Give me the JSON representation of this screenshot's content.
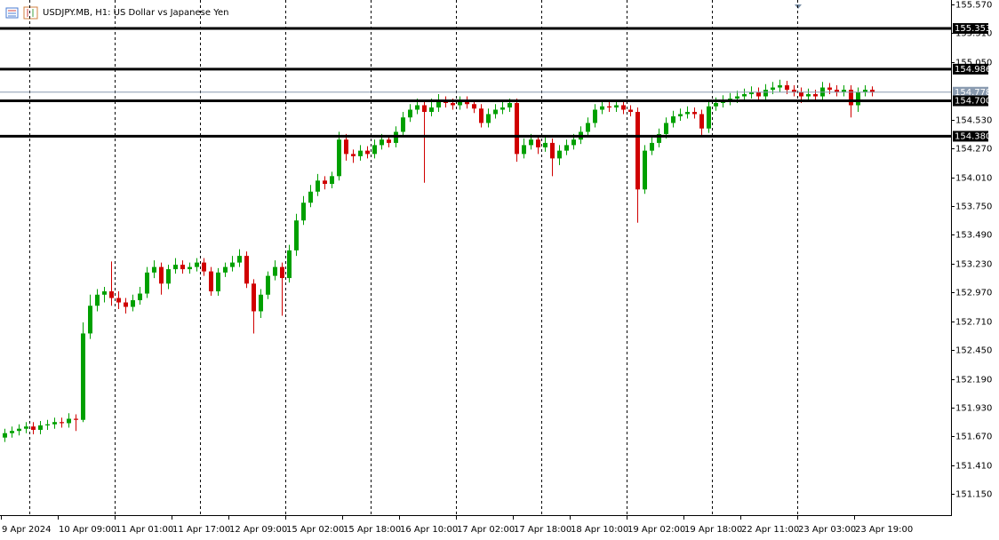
{
  "chart_data": {
    "type": "candlestick",
    "title": "USDJPY.MB, H1:  US Dollar vs Japanese Yen",
    "up_color": "#00a000",
    "down_color": "#d00000",
    "ylim": [
      150.96,
      155.61
    ],
    "yticks": [
      {
        "value": 155.57,
        "label": "155.570"
      },
      {
        "value": 155.31,
        "label": "155.310"
      },
      {
        "value": 155.05,
        "label": "155.050"
      },
      {
        "value": 154.53,
        "label": "154.530"
      },
      {
        "value": 154.27,
        "label": "154.270"
      },
      {
        "value": 154.01,
        "label": "154.010"
      },
      {
        "value": 153.75,
        "label": "153.750"
      },
      {
        "value": 153.49,
        "label": "153.490"
      },
      {
        "value": 153.23,
        "label": "153.230"
      },
      {
        "value": 152.97,
        "label": "152.970"
      },
      {
        "value": 152.71,
        "label": "152.710"
      },
      {
        "value": 152.45,
        "label": "152.450"
      },
      {
        "value": 152.19,
        "label": "152.190"
      },
      {
        "value": 151.93,
        "label": "151.930"
      },
      {
        "value": 151.67,
        "label": "151.670"
      },
      {
        "value": 151.41,
        "label": "151.410"
      },
      {
        "value": 151.15,
        "label": "151.150"
      }
    ],
    "levels": [
      155.353,
      154.986,
      {
        "value": 154.7,
        "label": "154.700"
      },
      {
        "value": 154.38,
        "label": "154.380"
      }
    ],
    "current_price": 154.778,
    "categories": [
      "9 Apr 2024",
      null,
      null,
      null,
      null,
      null,
      null,
      null,
      "10 Apr 09:00",
      null,
      null,
      null,
      null,
      null,
      null,
      null,
      "11 Apr 01:00",
      null,
      null,
      null,
      null,
      null,
      null,
      null,
      "11 Apr 17:00",
      null,
      null,
      null,
      null,
      null,
      null,
      null,
      "12 Apr 09:00",
      null,
      null,
      null,
      null,
      null,
      null,
      null,
      "15 Apr 02:00",
      null,
      null,
      null,
      null,
      null,
      null,
      null,
      "15 Apr 18:00",
      null,
      null,
      null,
      null,
      null,
      null,
      null,
      "16 Apr 10:00",
      null,
      null,
      null,
      null,
      null,
      null,
      null,
      "17 Apr 02:00",
      null,
      null,
      null,
      null,
      null,
      null,
      null,
      "17 Apr 18:00",
      null,
      null,
      null,
      null,
      null,
      null,
      null,
      "18 Apr 10:00",
      null,
      null,
      null,
      null,
      null,
      null,
      null,
      "19 Apr 02:00",
      null,
      null,
      null,
      null,
      null,
      null,
      null,
      "19 Apr 18:00",
      null,
      null,
      null,
      null,
      null,
      null,
      null,
      "22 Apr 11:00",
      null,
      null,
      null,
      null,
      null,
      null,
      null,
      "23 Apr 03:00",
      null,
      null,
      null,
      null,
      null,
      null,
      null,
      "23 Apr 19:00",
      null,
      null
    ],
    "open": [
      151.66,
      151.7,
      151.72,
      151.74,
      151.76,
      151.73,
      151.77,
      151.78,
      151.8,
      151.79,
      151.83,
      151.82,
      152.6,
      152.85,
      152.95,
      152.98,
      152.92,
      152.88,
      152.84,
      152.9,
      152.96,
      153.15,
      153.2,
      153.05,
      153.18,
      153.22,
      153.18,
      153.2,
      153.24,
      153.16,
      152.98,
      153.15,
      153.2,
      153.24,
      153.3,
      153.05,
      152.8,
      152.95,
      153.12,
      153.2,
      153.1,
      153.35,
      153.62,
      153.78,
      153.88,
      153.98,
      153.95,
      154.02,
      154.35,
      154.22,
      154.2,
      154.25,
      154.22,
      154.3,
      154.35,
      154.32,
      154.42,
      154.55,
      154.62,
      154.66,
      154.6,
      154.64,
      154.7,
      154.68,
      154.66,
      154.7,
      154.67,
      154.63,
      154.5,
      154.58,
      154.62,
      154.64,
      154.68,
      154.22,
      154.3,
      154.35,
      154.28,
      154.32,
      154.18,
      154.25,
      154.3,
      154.35,
      154.42,
      154.5,
      154.62,
      154.65,
      154.64,
      154.66,
      154.62,
      154.6,
      153.9,
      154.25,
      154.32,
      154.4,
      154.5,
      154.56,
      154.58,
      154.6,
      154.58,
      154.45,
      154.65,
      154.68,
      154.7,
      154.72,
      154.74,
      154.76,
      154.78,
      154.74,
      154.8,
      154.82,
      154.84,
      154.8,
      154.78,
      154.74,
      154.76,
      154.74,
      154.82,
      154.8,
      154.78,
      154.8,
      154.66,
      154.78,
      154.8
    ],
    "high": [
      151.74,
      151.76,
      151.78,
      151.8,
      151.8,
      151.81,
      151.82,
      151.84,
      151.84,
      151.88,
      151.87,
      152.7,
      152.95,
      153.0,
      153.02,
      153.25,
      152.98,
      152.92,
      152.95,
      153.02,
      153.2,
      153.26,
      153.24,
      153.22,
      153.28,
      153.26,
      153.24,
      153.28,
      153.28,
      153.2,
      153.19,
      153.24,
      153.3,
      153.36,
      153.34,
      153.09,
      153.0,
      153.16,
      153.26,
      153.24,
      153.4,
      153.68,
      153.84,
      153.94,
      154.04,
      154.02,
      154.06,
      154.42,
      154.4,
      154.26,
      154.3,
      154.29,
      154.35,
      154.4,
      154.39,
      154.47,
      154.6,
      154.67,
      154.72,
      154.7,
      154.72,
      154.76,
      154.74,
      154.72,
      154.74,
      154.74,
      154.71,
      154.67,
      154.63,
      154.67,
      154.69,
      154.72,
      154.72,
      154.36,
      154.4,
      154.39,
      154.37,
      154.36,
      154.3,
      154.35,
      154.4,
      154.47,
      154.55,
      154.67,
      154.7,
      154.69,
      154.7,
      154.7,
      154.66,
      154.64,
      154.3,
      154.37,
      154.45,
      154.55,
      154.61,
      154.63,
      154.65,
      154.64,
      154.62,
      154.7,
      154.73,
      154.75,
      154.77,
      154.79,
      154.81,
      154.83,
      154.82,
      154.85,
      154.87,
      154.89,
      154.88,
      154.84,
      154.82,
      154.81,
      154.8,
      154.87,
      154.86,
      154.84,
      154.84,
      154.84,
      154.82,
      154.84,
      154.83
    ],
    "low": [
      151.62,
      151.66,
      151.68,
      151.7,
      151.69,
      151.69,
      151.73,
      151.74,
      151.75,
      151.75,
      151.72,
      151.8,
      152.55,
      152.8,
      152.88,
      152.85,
      152.82,
      152.78,
      152.8,
      152.86,
      152.92,
      153.1,
      152.95,
      153.0,
      153.14,
      153.14,
      153.14,
      153.16,
      153.12,
      152.94,
      152.94,
      153.11,
      153.16,
      153.2,
      153.01,
      152.6,
      152.74,
      152.91,
      153.08,
      152.76,
      153.06,
      153.3,
      153.58,
      153.74,
      153.84,
      153.9,
      153.91,
      153.98,
      154.16,
      154.14,
      154.16,
      154.18,
      154.18,
      154.26,
      154.28,
      154.28,
      154.38,
      154.51,
      154.58,
      153.96,
      154.56,
      154.6,
      154.64,
      154.62,
      154.62,
      154.63,
      154.59,
      154.46,
      154.46,
      154.54,
      154.58,
      154.6,
      154.15,
      154.18,
      154.26,
      154.22,
      154.24,
      154.02,
      154.12,
      154.21,
      154.26,
      154.31,
      154.38,
      154.46,
      154.58,
      154.6,
      154.6,
      154.58,
      154.56,
      153.6,
      153.86,
      154.21,
      154.28,
      154.36,
      154.46,
      154.52,
      154.54,
      154.54,
      154.38,
      154.41,
      154.61,
      154.64,
      154.66,
      154.68,
      154.7,
      154.72,
      154.7,
      154.7,
      154.76,
      154.78,
      154.76,
      154.74,
      154.68,
      154.7,
      154.7,
      154.7,
      154.76,
      154.74,
      154.74,
      154.55,
      154.6,
      154.74,
      154.74
    ],
    "close": [
      151.7,
      151.72,
      151.74,
      151.76,
      151.73,
      151.77,
      151.78,
      151.8,
      151.79,
      151.83,
      151.82,
      152.6,
      152.85,
      152.95,
      152.98,
      152.92,
      152.88,
      152.84,
      152.9,
      152.96,
      153.15,
      153.2,
      153.05,
      153.18,
      153.22,
      153.18,
      153.2,
      153.24,
      153.16,
      152.98,
      153.15,
      153.2,
      153.24,
      153.3,
      153.05,
      152.8,
      152.95,
      153.12,
      153.2,
      153.1,
      153.35,
      153.62,
      153.78,
      153.88,
      153.98,
      153.95,
      154.02,
      154.35,
      154.22,
      154.2,
      154.25,
      154.22,
      154.3,
      154.35,
      154.32,
      154.42,
      154.55,
      154.62,
      154.66,
      154.6,
      154.64,
      154.7,
      154.68,
      154.66,
      154.7,
      154.67,
      154.63,
      154.5,
      154.58,
      154.62,
      154.64,
      154.68,
      154.22,
      154.3,
      154.35,
      154.28,
      154.32,
      154.18,
      154.25,
      154.3,
      154.35,
      154.42,
      154.5,
      154.62,
      154.65,
      154.64,
      154.66,
      154.62,
      154.6,
      153.9,
      154.25,
      154.32,
      154.4,
      154.5,
      154.56,
      154.58,
      154.6,
      154.58,
      154.45,
      154.65,
      154.68,
      154.7,
      154.72,
      154.74,
      154.76,
      154.78,
      154.74,
      154.8,
      154.82,
      154.84,
      154.8,
      154.78,
      154.74,
      154.76,
      154.74,
      154.82,
      154.8,
      154.78,
      154.8,
      154.66,
      154.78,
      154.8,
      154.78
    ]
  }
}
